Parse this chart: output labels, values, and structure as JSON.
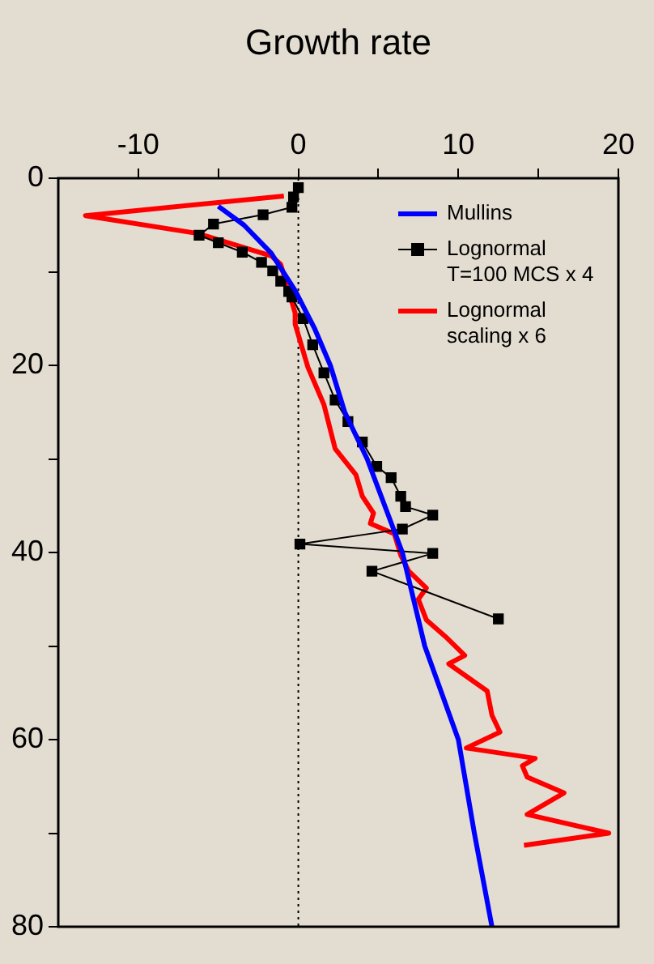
{
  "chart_data": {
    "type": "line",
    "orientation": "horizontal",
    "xlabel": "Growth rate",
    "xlim": [
      -15,
      20
    ],
    "xticks": [
      -10,
      {
        "value": -5,
        "label": null
      },
      0,
      {
        "value": 5,
        "label": null
      },
      10,
      {
        "value": 15,
        "label": null
      },
      20
    ],
    "ylim": [
      80,
      0
    ],
    "yticks": [
      0,
      {
        "value": 10,
        "label": null
      },
      20,
      {
        "value": 30,
        "label": null
      },
      40,
      {
        "value": 50,
        "label": null
      },
      60,
      {
        "value": 70,
        "label": null
      },
      80
    ],
    "legend": "top right",
    "ref_lines": [
      {
        "axis": "x",
        "value": 0,
        "color": "#000000",
        "line_style": "dotted"
      }
    ],
    "series": [
      {
        "name": "Mullins",
        "color": "#0000ff",
        "marker": "none",
        "x": [
          3,
          5,
          8,
          12,
          16,
          20,
          25,
          30,
          35,
          40,
          45,
          50,
          60,
          70,
          80
        ],
        "values": [
          -5.0,
          -3.4,
          -1.7,
          -0.2,
          1.0,
          2.0,
          2.9,
          4.3,
          5.4,
          6.5,
          7.2,
          7.9,
          10.0,
          11.0,
          12.1
        ]
      },
      {
        "name": "Lognormal T=100 MCS x 4",
        "color": "#000000",
        "marker": "square",
        "x": [
          1,
          2,
          3.1,
          3.9,
          4.9,
          6.1,
          6.9,
          7.9,
          9,
          9.9,
          11,
          12.1,
          12.7,
          15,
          17.8,
          20.8,
          23.7,
          26,
          28.2,
          30.8,
          32,
          34,
          35.1,
          36,
          37.5,
          39.1,
          40.1,
          42,
          47.1
        ],
        "values": [
          0,
          -0.3,
          -0.4,
          -2.2,
          -5.3,
          -6.2,
          -5.0,
          -3.5,
          -2.3,
          -1.6,
          -1.1,
          -0.6,
          -0.4,
          0.3,
          0.9,
          1.6,
          2.3,
          3.1,
          4.0,
          4.9,
          5.8,
          6.4,
          6.7,
          8.4,
          6.5,
          0.1,
          8.4,
          4.6,
          12.5
        ]
      },
      {
        "name": "Lognormal scaling x 6",
        "color": "#ff0000",
        "marker": "none",
        "x": [
          1.9,
          4.0,
          5.9,
          8.3,
          9.2,
          14.4,
          15.6,
          20.2,
          24.2,
          28.9,
          31.7,
          34,
          35.8,
          36.9,
          38,
          40.3,
          42,
          43.8,
          45,
          47.2,
          49,
          51,
          51.9,
          54.8,
          57.4,
          59.2,
          60.9,
          62,
          62.8,
          64,
          65.7,
          68,
          70,
          71.3
        ],
        "values": [
          -0.9,
          -13.3,
          -6.3,
          -1.7,
          -1.1,
          -0.2,
          -0.2,
          0.6,
          1.6,
          2.3,
          3.6,
          4.0,
          4.7,
          4.5,
          6.0,
          6.4,
          6.9,
          8.0,
          7.5,
          8.0,
          9.2,
          10.4,
          9.4,
          11.8,
          12.1,
          12.6,
          10.5,
          14.8,
          14.0,
          14.3,
          16.6,
          14.3,
          19.4,
          14.1
        ]
      }
    ]
  }
}
